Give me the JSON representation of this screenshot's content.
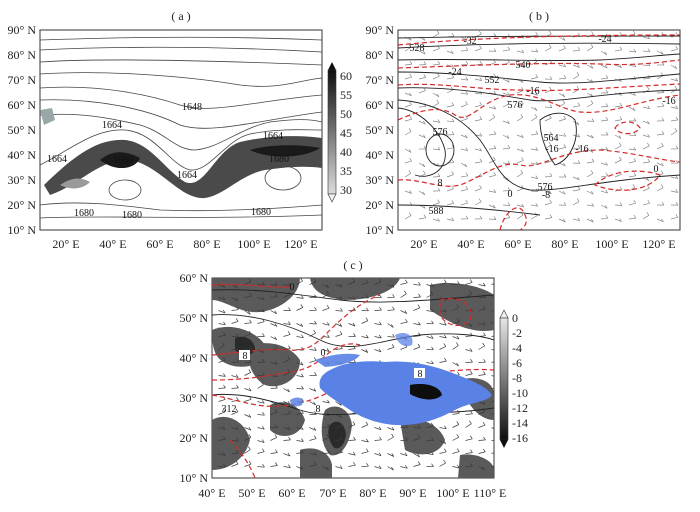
{
  "figure": {
    "panels": [
      {
        "id": "a",
        "label": "( a )",
        "x_ticks": [
          "20° E",
          "40° E",
          "60° E",
          "80° E",
          "100° E",
          "120° E"
        ],
        "y_ticks": [
          "90° N",
          "80° N",
          "70° N",
          "60° N",
          "50° N",
          "40° N",
          "30° N",
          "20° N",
          "10° N"
        ],
        "colorbar": {
          "ticks": [
            "60",
            "55",
            "50",
            "45",
            "40",
            "35",
            "30"
          ]
        },
        "contour_labels": [
          "1648",
          "1664",
          "1664",
          "1664",
          "1680",
          "1664",
          "1680",
          "1680",
          "1680",
          "1680"
        ]
      },
      {
        "id": "b",
        "label": "( b )",
        "x_ticks": [
          "20° E",
          "40° E",
          "60° E",
          "80° E",
          "100° E",
          "120° E"
        ],
        "y_ticks": [
          "90° N",
          "80° N",
          "70° N",
          "60° N",
          "50° N",
          "40° N",
          "30° N",
          "20° N",
          "10° N"
        ],
        "contour_labels": [
          "-32",
          "528",
          "-24",
          "-24",
          "540",
          "552",
          "-16",
          "-16",
          "576",
          "-16",
          "576",
          "564",
          "-16",
          "0",
          "576",
          "-8",
          "0",
          "8",
          "588"
        ]
      },
      {
        "id": "c",
        "label": "( c )",
        "x_ticks": [
          "40° E",
          "50° E",
          "60° E",
          "70° E",
          "80° E",
          "90° E",
          "100° E",
          "110° E"
        ],
        "y_ticks": [
          "60° N",
          "50° N",
          "40° N",
          "30° N",
          "20° N",
          "10° N"
        ],
        "colorbar": {
          "ticks": [
            "0",
            "-2",
            "-4",
            "-6",
            "-8",
            "-10",
            "-12",
            "-14",
            "-16"
          ]
        },
        "contour_labels": [
          "0",
          "8",
          "0",
          "8",
          "312",
          "8"
        ]
      }
    ],
    "colors": {
      "shading_dark": "#2a2a2a",
      "shading_mid": "#6e6e6e",
      "shading_light": "#b8b8b8",
      "red_contour": "#d42a2a",
      "plateau_blue": "#5a82e6"
    }
  }
}
